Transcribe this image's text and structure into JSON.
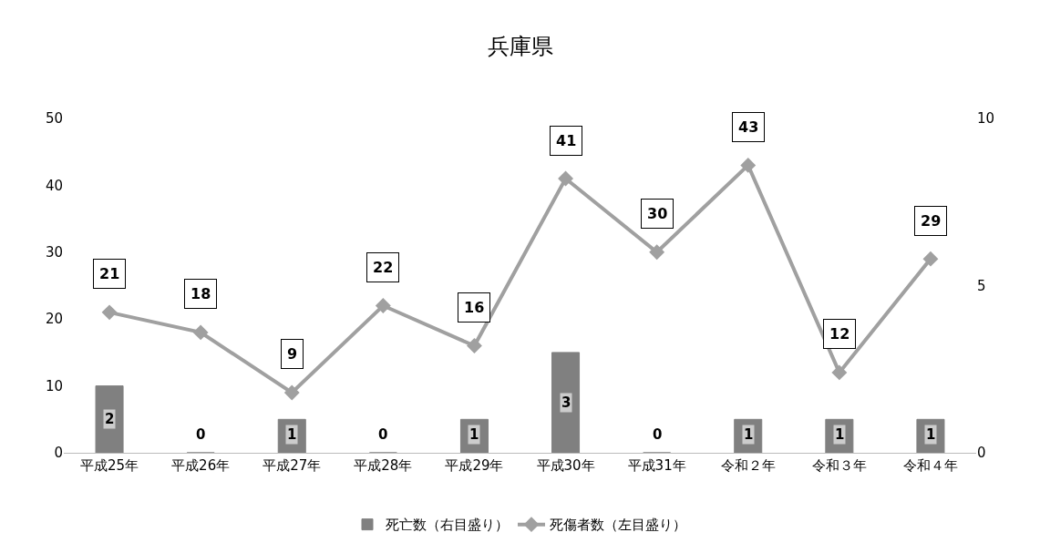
{
  "chart_data": {
    "type": "bar",
    "title": "兵庫県",
    "categories": [
      "平成25年",
      "平成26年",
      "平成27年",
      "平成28年",
      "平成29年",
      "平成30年",
      "平成31年",
      "令和２年",
      "令和３年",
      "令和４年"
    ],
    "series": [
      {
        "name": "死亡数（右目盛り）",
        "axis": "y2",
        "color": "#808080",
        "values": [
          2,
          0,
          1,
          0,
          1,
          3,
          0,
          1,
          1,
          1
        ]
      },
      {
        "name": "死傷者数（左目盛り）",
        "type": "line",
        "color": "#a0a0a0",
        "marker": "diamond",
        "values": [
          21,
          18,
          9,
          22,
          16,
          41,
          30,
          43,
          12,
          29
        ]
      }
    ],
    "ylim": [
      0,
      50
    ],
    "yticks": [
      0,
      10,
      20,
      30,
      40,
      50
    ],
    "y2lim": [
      0,
      10
    ],
    "y2ticks": [
      0,
      5,
      10
    ],
    "data_labels": true,
    "legend": "bottom"
  }
}
